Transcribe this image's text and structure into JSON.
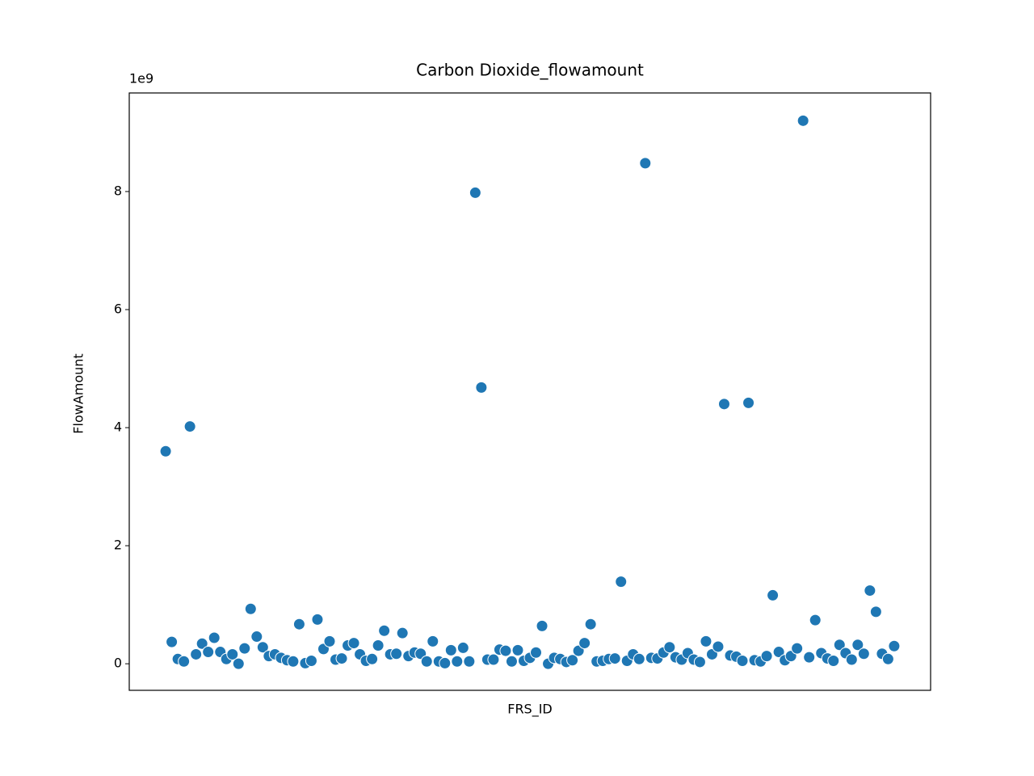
{
  "chart_data": {
    "type": "scatter",
    "title": "Carbon Dioxide_flowamount",
    "x_label": "FRS_ID",
    "y_label": "FlowAmount",
    "y_offset_label": "1e9",
    "color": "#1f77b4",
    "categories": [
      null,
      null,
      null,
      null,
      null,
      null,
      null,
      null,
      null,
      null,
      null,
      null,
      null,
      null,
      null,
      null,
      null,
      null,
      null,
      null,
      null,
      null,
      null,
      null,
      null,
      null,
      null,
      null,
      null,
      null,
      null,
      null,
      null,
      null,
      null,
      null,
      null,
      null,
      null,
      null,
      null,
      null,
      null,
      null,
      null,
      null,
      null,
      null,
      null,
      null,
      null,
      null,
      null,
      null,
      null,
      null,
      null,
      null,
      null,
      null,
      null,
      null,
      null,
      null,
      null,
      null,
      null,
      null,
      null,
      null,
      null,
      null,
      null,
      null,
      null,
      null,
      null,
      null,
      null,
      null,
      null,
      null,
      null,
      null,
      null,
      null,
      null,
      null,
      null,
      null,
      null,
      null,
      null,
      null,
      null,
      null,
      null,
      null,
      null,
      null,
      null,
      null,
      null,
      null,
      null,
      null,
      null,
      null,
      null,
      null,
      null,
      null,
      null,
      null,
      null,
      null,
      null,
      null,
      null,
      null,
      null
    ],
    "values": [
      3.6,
      0.37,
      0.08,
      0.04,
      4.02,
      0.16,
      0.34,
      0.2,
      0.44,
      0.2,
      0.08,
      0.16,
      0.0,
      0.26,
      0.93,
      0.46,
      0.28,
      0.13,
      0.16,
      0.1,
      0.06,
      0.04,
      0.67,
      0.01,
      0.05,
      0.75,
      0.25,
      0.38,
      0.07,
      0.09,
      0.31,
      0.35,
      0.16,
      0.05,
      0.08,
      0.31,
      0.56,
      0.16,
      0.17,
      0.52,
      0.13,
      0.19,
      0.17,
      0.04,
      0.38,
      0.04,
      0.01,
      0.23,
      0.04,
      0.27,
      0.04,
      7.98,
      4.68,
      0.07,
      0.07,
      0.24,
      0.22,
      0.04,
      0.23,
      0.05,
      0.1,
      0.19,
      0.64,
      0.0,
      0.1,
      0.08,
      0.03,
      0.06,
      0.22,
      0.35,
      0.67,
      0.04,
      0.05,
      0.08,
      0.09,
      1.39,
      0.05,
      0.16,
      0.08,
      8.48,
      0.1,
      0.09,
      0.19,
      0.28,
      0.11,
      0.07,
      0.18,
      0.07,
      0.03,
      0.38,
      0.16,
      0.29,
      4.4,
      0.14,
      0.12,
      0.05,
      4.42,
      0.06,
      0.04,
      0.13,
      1.16,
      0.2,
      0.06,
      0.13,
      0.26,
      9.2,
      0.11,
      0.74,
      0.18,
      0.09,
      0.05,
      0.32,
      0.18,
      0.07,
      0.32,
      0.17,
      1.24,
      0.88,
      0.17,
      0.08,
      0.3
    ],
    "ylim": [
      -0.45,
      9.67
    ],
    "yticks": [
      0,
      2,
      4,
      6,
      8
    ]
  }
}
